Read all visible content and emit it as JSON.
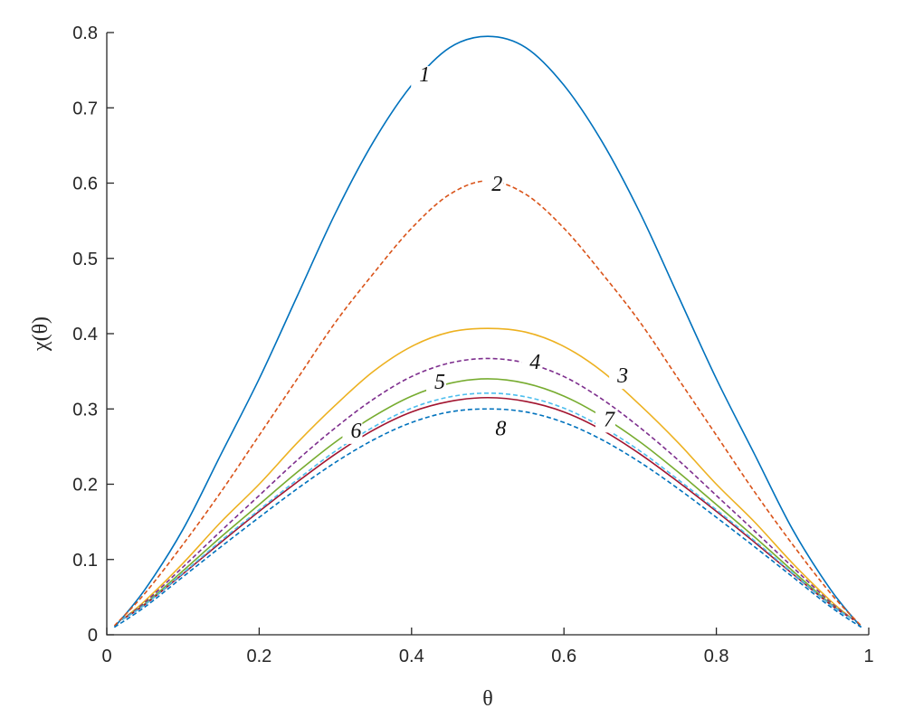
{
  "chart_data": {
    "type": "line",
    "title": "",
    "xlabel": "θ",
    "ylabel": "χ(θ)",
    "xlim": [
      0,
      1
    ],
    "ylim": [
      0,
      0.8
    ],
    "x_ticks": [
      {
        "value": 0,
        "label": "0"
      },
      {
        "value": 0.2,
        "label": "0.2"
      },
      {
        "value": 0.4,
        "label": "0.4"
      },
      {
        "value": 0.6,
        "label": "0.6"
      },
      {
        "value": 0.8,
        "label": "0.8"
      },
      {
        "value": 1,
        "label": "1"
      }
    ],
    "y_ticks": [
      {
        "value": 0,
        "label": "0"
      },
      {
        "value": 0.1,
        "label": "0.1"
      },
      {
        "value": 0.2,
        "label": "0.2"
      },
      {
        "value": 0.3,
        "label": "0.3"
      },
      {
        "value": 0.4,
        "label": "0.4"
      },
      {
        "value": 0.5,
        "label": "0.5"
      },
      {
        "value": 0.6,
        "label": "0.6"
      },
      {
        "value": 0.7,
        "label": "0.7"
      },
      {
        "value": 0.8,
        "label": "0.8"
      }
    ],
    "grid": false,
    "legend": "none",
    "series": [
      {
        "label": "1",
        "color": "#0072BD",
        "dash": "solid",
        "x": [
          0.01,
          0.05,
          0.1,
          0.15,
          0.2,
          0.25,
          0.3,
          0.35,
          0.4,
          0.45,
          0.5,
          0.55,
          0.6,
          0.65,
          0.7,
          0.75,
          0.8,
          0.85,
          0.9,
          0.95,
          0.99
        ],
        "y": [
          0.01,
          0.06,
          0.14,
          0.24,
          0.34,
          0.45,
          0.56,
          0.655,
          0.73,
          0.78,
          0.795,
          0.78,
          0.73,
          0.655,
          0.56,
          0.45,
          0.34,
          0.24,
          0.14,
          0.06,
          0.01
        ],
        "label_at": {
          "x": 0.41,
          "y": 0.735
        }
      },
      {
        "label": "2",
        "color": "#D95319",
        "dash": "dashed",
        "x": [
          0.01,
          0.05,
          0.1,
          0.15,
          0.2,
          0.25,
          0.3,
          0.35,
          0.4,
          0.45,
          0.5,
          0.55,
          0.6,
          0.65,
          0.7,
          0.75,
          0.8,
          0.85,
          0.9,
          0.95,
          0.99
        ],
        "y": [
          0.012,
          0.055,
          0.12,
          0.19,
          0.265,
          0.34,
          0.415,
          0.48,
          0.54,
          0.585,
          0.603,
          0.585,
          0.54,
          0.48,
          0.415,
          0.34,
          0.265,
          0.19,
          0.12,
          0.055,
          0.012
        ],
        "label_at": {
          "x": 0.505,
          "y": 0.59
        }
      },
      {
        "label": "3",
        "color": "#EDB120",
        "dash": "solid",
        "x": [
          0.02,
          0.05,
          0.1,
          0.15,
          0.2,
          0.25,
          0.3,
          0.35,
          0.4,
          0.45,
          0.5,
          0.55,
          0.6,
          0.65,
          0.7,
          0.75,
          0.8,
          0.85,
          0.9,
          0.95,
          0.98
        ],
        "y": [
          0.02,
          0.045,
          0.095,
          0.15,
          0.2,
          0.255,
          0.305,
          0.35,
          0.383,
          0.402,
          0.407,
          0.402,
          0.383,
          0.35,
          0.305,
          0.255,
          0.2,
          0.15,
          0.095,
          0.045,
          0.02
        ],
        "label_at": {
          "x": 0.67,
          "y": 0.335
        }
      },
      {
        "label": "4",
        "color": "#7E2F8E",
        "dash": "dashed",
        "x": [
          0.02,
          0.05,
          0.1,
          0.15,
          0.2,
          0.25,
          0.3,
          0.35,
          0.4,
          0.45,
          0.5,
          0.55,
          0.6,
          0.65,
          0.7,
          0.75,
          0.8,
          0.85,
          0.9,
          0.95,
          0.98
        ],
        "y": [
          0.02,
          0.043,
          0.09,
          0.138,
          0.185,
          0.232,
          0.275,
          0.313,
          0.343,
          0.361,
          0.367,
          0.361,
          0.343,
          0.313,
          0.275,
          0.232,
          0.185,
          0.138,
          0.09,
          0.043,
          0.02
        ],
        "label_at": {
          "x": 0.555,
          "y": 0.353
        }
      },
      {
        "label": "5",
        "color": "#77AC30",
        "dash": "solid",
        "x": [
          0.02,
          0.05,
          0.1,
          0.15,
          0.2,
          0.25,
          0.3,
          0.35,
          0.4,
          0.45,
          0.5,
          0.55,
          0.6,
          0.65,
          0.7,
          0.75,
          0.8,
          0.85,
          0.9,
          0.95,
          0.98
        ],
        "y": [
          0.02,
          0.041,
          0.085,
          0.13,
          0.173,
          0.216,
          0.256,
          0.29,
          0.317,
          0.334,
          0.34,
          0.334,
          0.317,
          0.29,
          0.256,
          0.216,
          0.173,
          0.13,
          0.085,
          0.041,
          0.02
        ],
        "label_at": {
          "x": 0.43,
          "y": 0.327
        }
      },
      {
        "label": "6",
        "color": "#A2142F",
        "dash": "solid",
        "x": [
          0.02,
          0.05,
          0.1,
          0.15,
          0.2,
          0.25,
          0.3,
          0.35,
          0.4,
          0.45,
          0.5,
          0.55,
          0.6,
          0.65,
          0.7,
          0.75,
          0.8,
          0.85,
          0.9,
          0.95,
          0.98
        ],
        "y": [
          0.02,
          0.04,
          0.081,
          0.123,
          0.164,
          0.203,
          0.24,
          0.272,
          0.296,
          0.31,
          0.315,
          0.31,
          0.296,
          0.272,
          0.24,
          0.203,
          0.164,
          0.123,
          0.081,
          0.04,
          0.02
        ],
        "label_at": {
          "x": 0.32,
          "y": 0.262
        }
      },
      {
        "label": "7",
        "color": "#4DBEEE",
        "dash": "dashed",
        "x": [
          0.02,
          0.05,
          0.1,
          0.15,
          0.2,
          0.25,
          0.3,
          0.35,
          0.4,
          0.45,
          0.5,
          0.55,
          0.6,
          0.65,
          0.7,
          0.75,
          0.8,
          0.85,
          0.9,
          0.95,
          0.98
        ],
        "y": [
          0.02,
          0.04,
          0.082,
          0.125,
          0.166,
          0.206,
          0.244,
          0.276,
          0.301,
          0.316,
          0.321,
          0.316,
          0.301,
          0.276,
          0.244,
          0.206,
          0.166,
          0.125,
          0.082,
          0.04,
          0.02
        ],
        "label_at": {
          "x": 0.652,
          "y": 0.277
        }
      },
      {
        "label": "8",
        "color": "#0072BD",
        "dash": "dashed",
        "x": [
          0.01,
          0.05,
          0.1,
          0.15,
          0.2,
          0.25,
          0.3,
          0.35,
          0.4,
          0.45,
          0.5,
          0.55,
          0.6,
          0.65,
          0.7,
          0.75,
          0.8,
          0.85,
          0.9,
          0.95,
          0.99
        ],
        "y": [
          0.01,
          0.037,
          0.077,
          0.117,
          0.156,
          0.194,
          0.229,
          0.259,
          0.282,
          0.296,
          0.3,
          0.296,
          0.282,
          0.259,
          0.229,
          0.194,
          0.156,
          0.117,
          0.077,
          0.037,
          0.01
        ],
        "label_at": {
          "x": 0.51,
          "y": 0.265
        }
      }
    ]
  }
}
